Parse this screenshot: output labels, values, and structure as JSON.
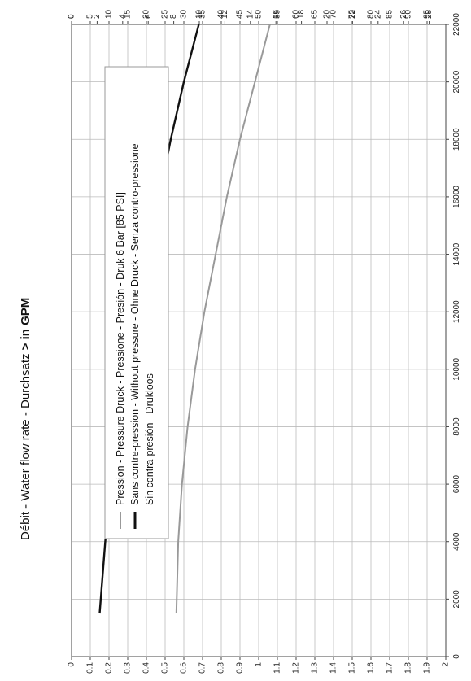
{
  "chart_data": {
    "type": "line",
    "orientation": "rotated-90-clockwise",
    "title_prefix": "Débit - Water flow rate - Durchsatz ",
    "title_suffix": "> in GPM",
    "x_axis": {
      "label": "",
      "ticks": [
        "0",
        "2000",
        "4000",
        "6000",
        "8000",
        "10000",
        "12000",
        "14000",
        "16000",
        "18000",
        "20000",
        "22000"
      ],
      "range": [
        0,
        22000
      ]
    },
    "y_axis_left": {
      "label": "",
      "ticks": [
        "0",
        "0.1",
        "0.2",
        "0.3",
        "0.4",
        "0.5",
        "0.6",
        "0.7",
        "0.8",
        "0.9",
        "1",
        "1.1",
        "1.2",
        "1.3",
        "1.4",
        "1.5",
        "1.6",
        "1.7",
        "1.8",
        "1.9",
        "2"
      ],
      "range": [
        0,
        2
      ]
    },
    "y_axis_top": {
      "ticks": [
        "0",
        "5",
        "10",
        "15",
        "20",
        "25",
        "30",
        "35",
        "40",
        "45",
        "50",
        "55",
        "60",
        "65",
        "70",
        "75",
        "80",
        "85",
        "90",
        "95"
      ],
      "range": [
        0,
        100
      ]
    },
    "y_axis_bottom": {
      "ticks": [
        "0",
        "2",
        "4",
        "6",
        "8",
        "10",
        "12",
        "14",
        "16",
        "18",
        "20",
        "22",
        "24",
        "26",
        "28"
      ],
      "range": [
        0,
        29.3
      ]
    },
    "grid": true,
    "legend_position": "upper-left",
    "series": [
      {
        "name": "Pression - Pressure Druck - Pressione - Presión - Druk 6 Bar [85 PSI]",
        "color": "#999999",
        "x": [
          1500,
          4000,
          6000,
          8000,
          10000,
          12000,
          14000,
          16000,
          18000,
          20000,
          22000
        ],
        "y": [
          0.56,
          0.57,
          0.59,
          0.62,
          0.66,
          0.71,
          0.77,
          0.83,
          0.9,
          0.98,
          1.06
        ]
      },
      {
        "name": "Sans contre-pression - Without pressure - Ohne Druck - Senza contro-pressione",
        "name_line2": "Sin  contra-presión - Drukloos",
        "color": "#111111",
        "x": [
          1500,
          4000,
          6000,
          8000,
          10000,
          12000,
          14000,
          16000,
          18000,
          20000,
          22000
        ],
        "y": [
          0.15,
          0.18,
          0.21,
          0.25,
          0.3,
          0.35,
          0.41,
          0.47,
          0.53,
          0.6,
          0.68
        ]
      }
    ]
  }
}
